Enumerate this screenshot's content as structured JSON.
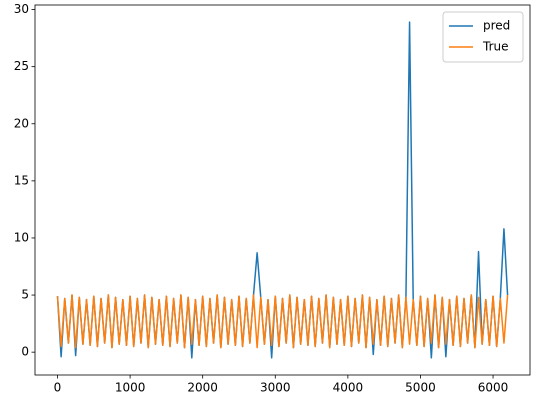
{
  "chart_data": {
    "type": "line",
    "x": [
      0,
      50,
      100,
      150,
      200,
      250,
      300,
      350,
      400,
      450,
      500,
      550,
      600,
      650,
      700,
      750,
      800,
      850,
      900,
      950,
      1000,
      1050,
      1100,
      1150,
      1200,
      1250,
      1300,
      1350,
      1400,
      1450,
      1500,
      1550,
      1600,
      1650,
      1700,
      1750,
      1800,
      1850,
      1900,
      1950,
      2000,
      2050,
      2100,
      2150,
      2200,
      2250,
      2300,
      2350,
      2400,
      2450,
      2500,
      2550,
      2600,
      2650,
      2700,
      2750,
      2800,
      2850,
      2900,
      2950,
      3000,
      3050,
      3100,
      3150,
      3200,
      3250,
      3300,
      3350,
      3400,
      3450,
      3500,
      3550,
      3600,
      3650,
      3700,
      3750,
      3800,
      3850,
      3900,
      3950,
      4000,
      4050,
      4100,
      4150,
      4200,
      4250,
      4300,
      4350,
      4400,
      4450,
      4500,
      4550,
      4600,
      4650,
      4700,
      4750,
      4800,
      4850,
      4900,
      4950,
      5000,
      5050,
      5100,
      5150,
      5200,
      5250,
      5300,
      5350,
      5400,
      5450,
      5500,
      5550,
      5600,
      5650,
      5700,
      5750,
      5800,
      5850,
      5900,
      5950,
      6000,
      6050,
      6100,
      6150,
      6200
    ],
    "series": [
      {
        "name": "pred",
        "color": "#1f77b4",
        "values": [
          4.9,
          -0.4,
          4.7,
          0.8,
          5.0,
          -0.3,
          4.8,
          0.7,
          4.6,
          0.6,
          4.9,
          0.5,
          4.7,
          0.8,
          5.0,
          0.4,
          4.8,
          0.7,
          4.6,
          0.6,
          4.9,
          0.5,
          4.7,
          0.8,
          5.0,
          0.4,
          4.8,
          0.7,
          4.6,
          0.6,
          4.9,
          0.5,
          4.7,
          0.8,
          5.0,
          0.4,
          4.8,
          -0.5,
          4.6,
          0.6,
          4.9,
          0.5,
          4.7,
          0.8,
          5.0,
          0.4,
          4.8,
          0.7,
          4.6,
          0.6,
          4.9,
          0.5,
          4.7,
          0.8,
          5.0,
          8.7,
          4.8,
          0.7,
          4.6,
          -0.5,
          4.9,
          0.5,
          4.7,
          0.8,
          5.0,
          0.4,
          4.8,
          0.7,
          4.6,
          0.6,
          4.9,
          0.5,
          4.7,
          0.8,
          5.0,
          0.4,
          4.8,
          0.7,
          4.6,
          0.6,
          4.9,
          0.5,
          4.7,
          0.8,
          5.0,
          0.4,
          4.8,
          -0.2,
          4.6,
          0.6,
          4.9,
          0.5,
          4.7,
          0.8,
          5.0,
          0.4,
          4.8,
          28.9,
          4.6,
          0.6,
          4.9,
          0.5,
          4.7,
          -0.5,
          5.0,
          0.4,
          4.8,
          -0.4,
          4.6,
          0.6,
          4.9,
          0.5,
          4.7,
          0.8,
          5.0,
          0.4,
          8.8,
          0.7,
          4.6,
          0.6,
          4.9,
          0.5,
          4.7,
          10.8,
          5.0
        ]
      },
      {
        "name": "True",
        "color": "#ff7f0e",
        "values": [
          4.9,
          0.5,
          4.7,
          0.8,
          5.0,
          0.4,
          4.8,
          0.7,
          4.6,
          0.6,
          4.9,
          0.5,
          4.7,
          0.8,
          5.0,
          0.4,
          4.8,
          0.7,
          4.6,
          0.6,
          4.9,
          0.5,
          4.7,
          0.8,
          5.0,
          0.4,
          4.8,
          0.7,
          4.6,
          0.6,
          4.9,
          0.5,
          4.7,
          0.8,
          5.0,
          0.4,
          4.8,
          0.7,
          4.6,
          0.6,
          4.9,
          0.5,
          4.7,
          0.8,
          5.0,
          0.4,
          4.8,
          0.7,
          4.6,
          0.6,
          4.9,
          0.5,
          4.7,
          0.8,
          5.0,
          0.4,
          4.8,
          0.7,
          4.6,
          0.6,
          4.9,
          0.5,
          4.7,
          0.8,
          5.0,
          0.4,
          4.8,
          0.7,
          4.6,
          0.6,
          4.9,
          0.5,
          4.7,
          0.8,
          5.0,
          0.4,
          4.8,
          0.7,
          4.6,
          0.6,
          4.9,
          0.5,
          4.7,
          0.8,
          5.0,
          0.4,
          4.8,
          0.7,
          4.6,
          0.6,
          4.9,
          0.5,
          4.7,
          0.8,
          5.0,
          0.4,
          4.8,
          0.7,
          4.6,
          0.6,
          4.9,
          0.5,
          4.7,
          0.8,
          5.0,
          0.4,
          4.8,
          0.7,
          4.6,
          0.6,
          4.9,
          0.5,
          4.7,
          0.8,
          5.0,
          0.4,
          4.8,
          0.7,
          4.6,
          0.6,
          4.9,
          0.5,
          4.7,
          0.8,
          5.0
        ]
      }
    ],
    "xlim": [
      -310,
      6509
    ],
    "xticks": [
      0,
      1000,
      2000,
      3000,
      4000,
      5000,
      6000
    ],
    "ylim": [
      -2,
      30.4
    ],
    "yticks": [
      0,
      5,
      10,
      15,
      20,
      25,
      30
    ],
    "legend": "upper right"
  }
}
